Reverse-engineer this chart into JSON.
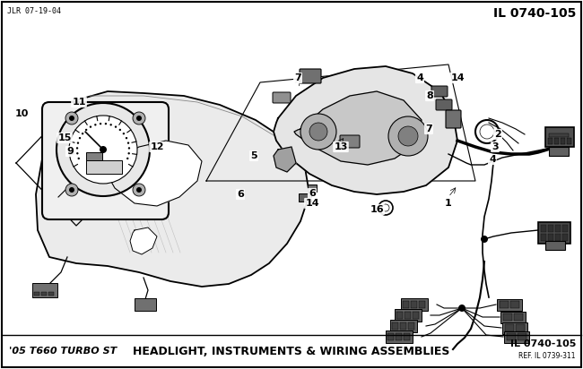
{
  "background_color": "#ffffff",
  "border_color": "#000000",
  "top_left_text": "JLR 07-19-04",
  "top_right_text": "IL 0740-105",
  "bottom_left_text": "'05 T660 TURBO ST",
  "bottom_center_text": "HEADLIGHT, INSTRUMENTS & WIRING ASSEMBLIES",
  "bottom_right_line1": "IL 0740-105",
  "bottom_right_line2": "REF. IL 0739-311",
  "fig_width": 6.5,
  "fig_height": 4.12,
  "dpi": 100,
  "lw_main": 1.2,
  "lw_thin": 0.7,
  "lw_wire": 0.9,
  "gray_fill": "#d8d8d8",
  "dark_fill": "#505050",
  "mid_fill": "#888888",
  "light_fill": "#cccccc"
}
